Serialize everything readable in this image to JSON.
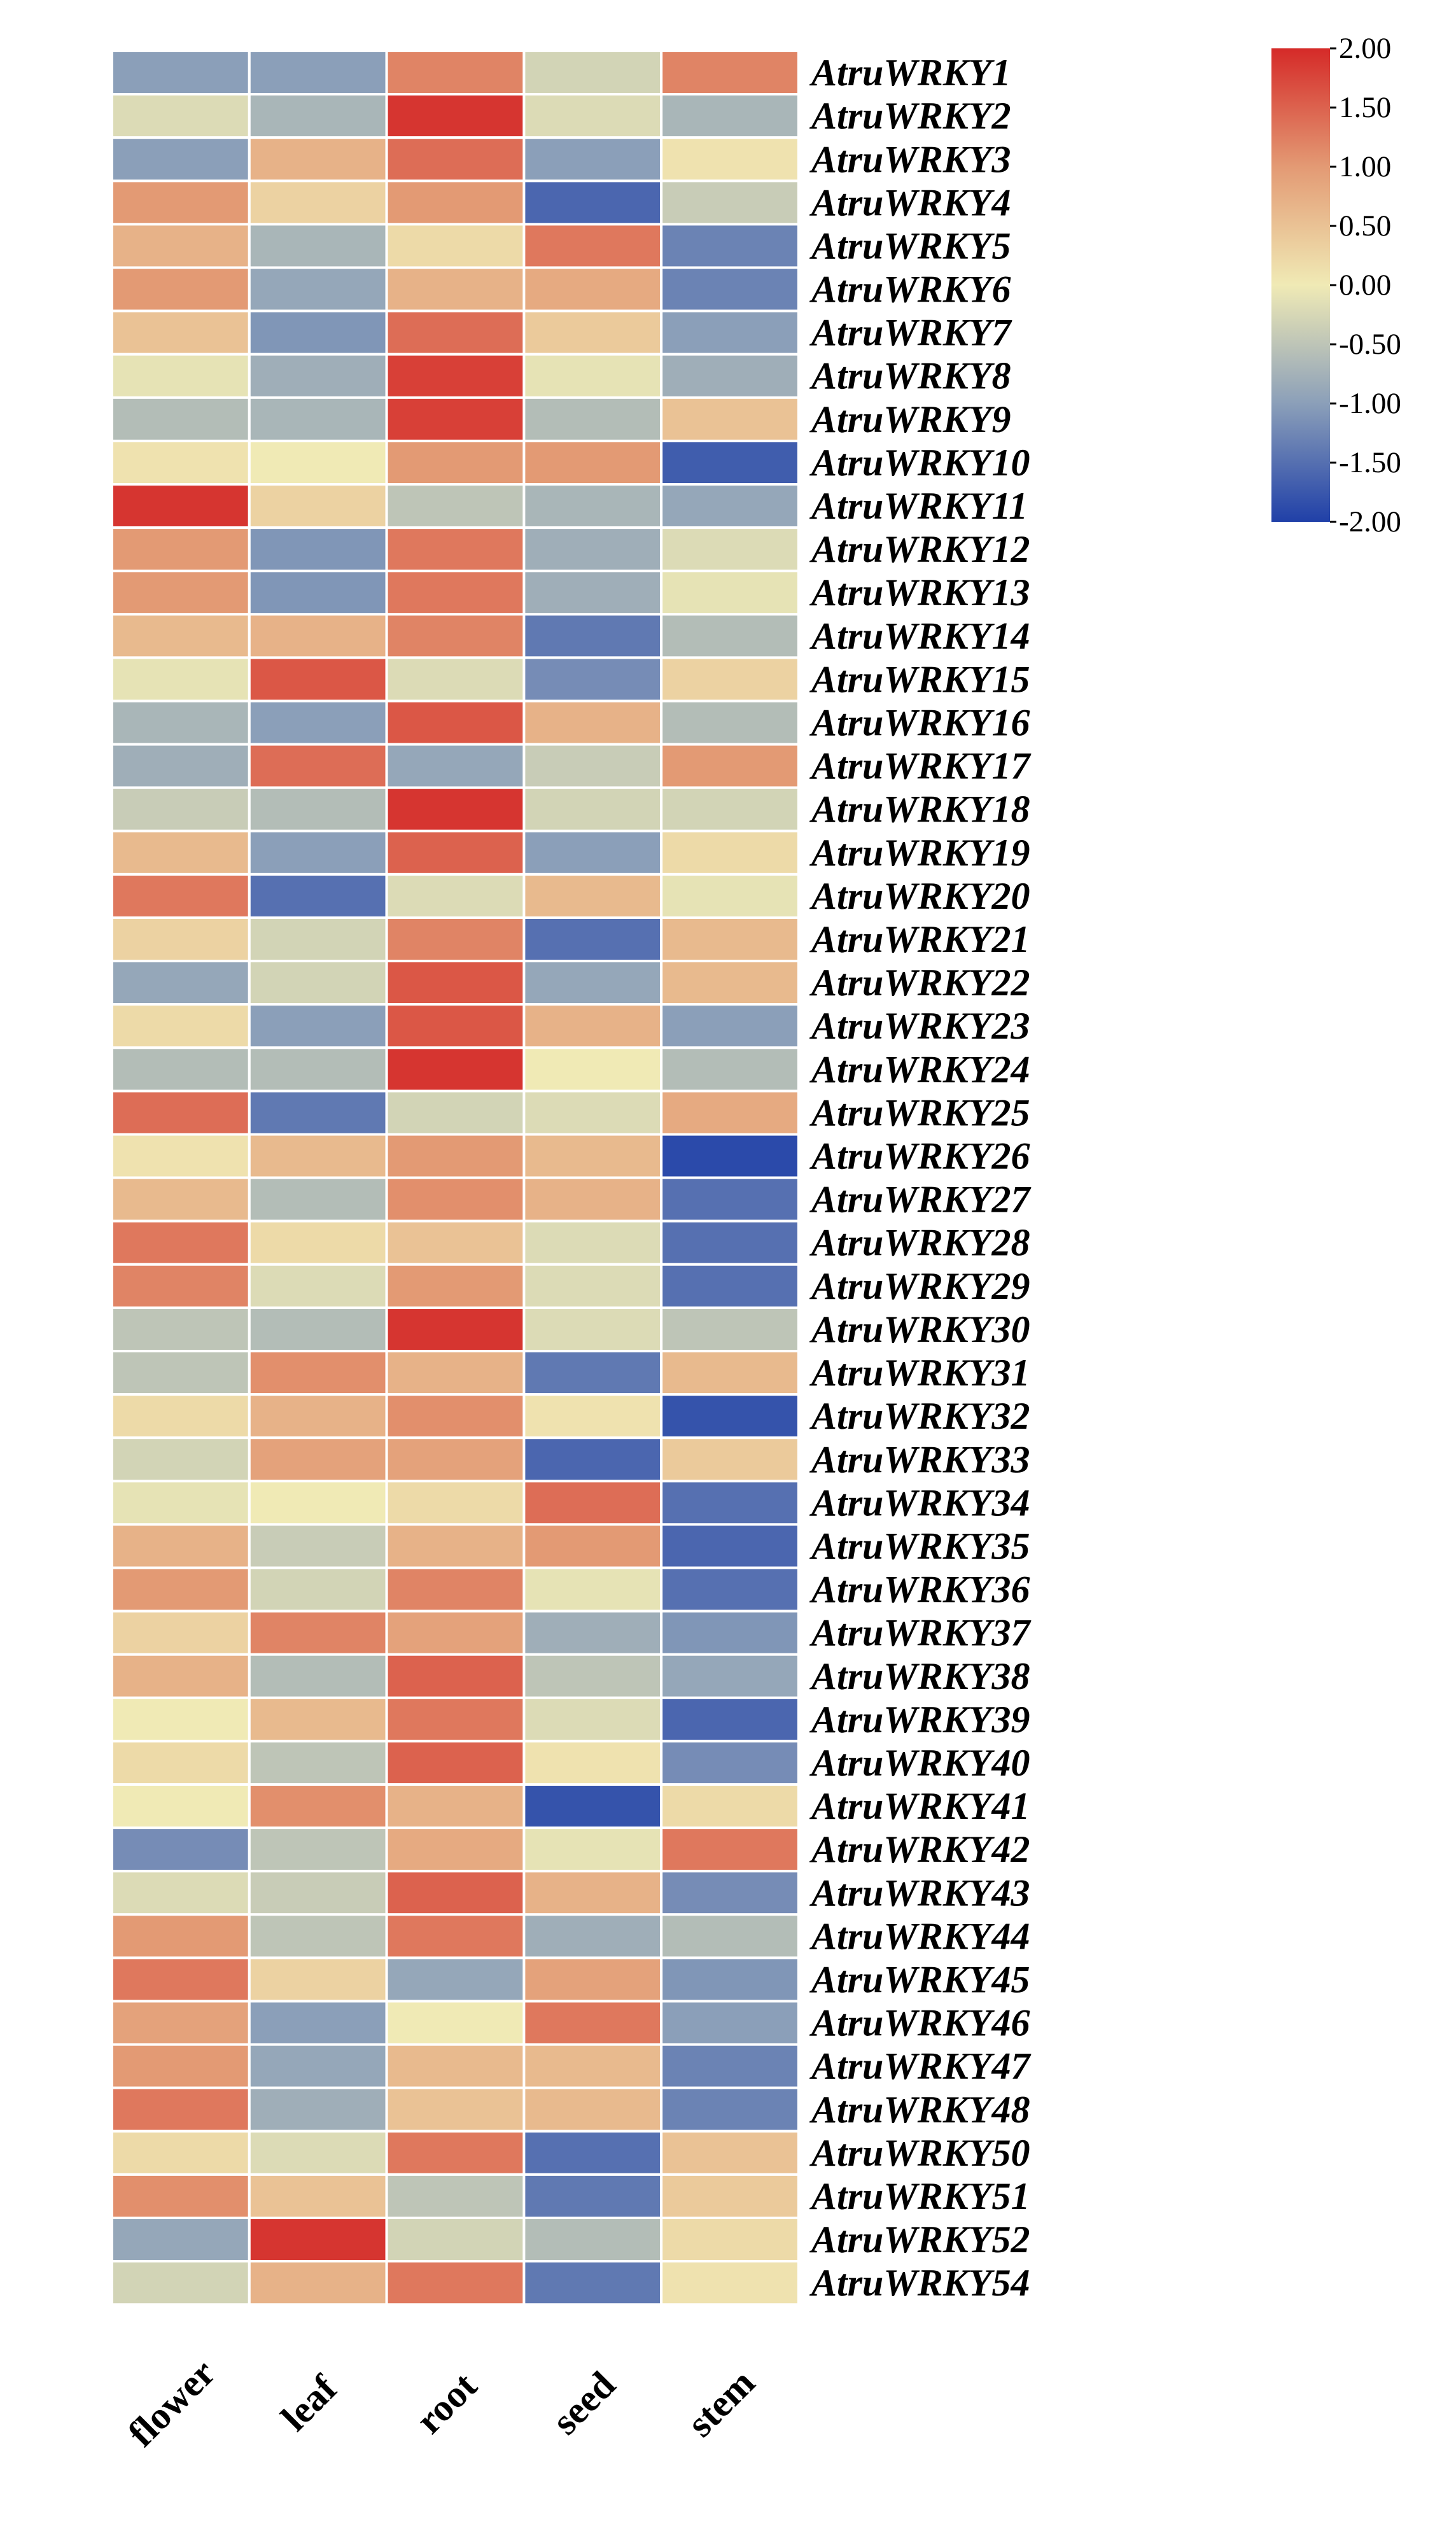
{
  "chart_data": {
    "type": "heatmap",
    "title": "",
    "xlabel": "",
    "ylabel": "",
    "columns": [
      "flower",
      "leaf",
      "root",
      "seed",
      "stem"
    ],
    "rows": [
      "AtruWRKY1",
      "AtruWRKY2",
      "AtruWRKY3",
      "AtruWRKY4",
      "AtruWRKY5",
      "AtruWRKY6",
      "AtruWRKY7",
      "AtruWRKY8",
      "AtruWRKY9",
      "AtruWRKY10",
      "AtruWRKY11",
      "AtruWRKY12",
      "AtruWRKY13",
      "AtruWRKY14",
      "AtruWRKY15",
      "AtruWRKY16",
      "AtruWRKY17",
      "AtruWRKY18",
      "AtruWRKY19",
      "AtruWRKY20",
      "AtruWRKY21",
      "AtruWRKY22",
      "AtruWRKY23",
      "AtruWRKY24",
      "AtruWRKY25",
      "AtruWRKY26",
      "AtruWRKY27",
      "AtruWRKY28",
      "AtruWRKY29",
      "AtruWRKY30",
      "AtruWRKY31",
      "AtruWRKY32",
      "AtruWRKY33",
      "AtruWRKY34",
      "AtruWRKY35",
      "AtruWRKY36",
      "AtruWRKY37",
      "AtruWRKY38",
      "AtruWRKY39",
      "AtruWRKY40",
      "AtruWRKY41",
      "AtruWRKY42",
      "AtruWRKY43",
      "AtruWRKY44",
      "AtruWRKY45",
      "AtruWRKY46",
      "AtruWRKY47",
      "AtruWRKY48",
      "AtruWRKY50",
      "AtruWRKY51",
      "AtruWRKY52",
      "AtruWRKY54"
    ],
    "values": [
      [
        -1.0,
        -1.0,
        1.2,
        -0.3,
        1.2
      ],
      [
        -0.2,
        -0.7,
        1.9,
        -0.2,
        -0.7
      ],
      [
        -1.0,
        0.7,
        1.4,
        -1.0,
        0.1
      ],
      [
        1.0,
        0.3,
        1.0,
        -1.6,
        -0.4
      ],
      [
        0.7,
        -0.7,
        0.2,
        1.3,
        -1.3
      ],
      [
        1.0,
        -0.9,
        0.7,
        0.8,
        -1.3
      ],
      [
        0.5,
        -1.1,
        1.4,
        0.4,
        -1.0
      ],
      [
        -0.1,
        -0.8,
        1.8,
        -0.1,
        -0.8
      ],
      [
        -0.6,
        -0.7,
        1.8,
        -0.6,
        0.5
      ],
      [
        0.1,
        0.0,
        1.0,
        1.0,
        -1.7
      ],
      [
        1.9,
        0.3,
        -0.5,
        -0.7,
        -0.9
      ],
      [
        1.0,
        -1.1,
        1.3,
        -0.8,
        -0.2
      ],
      [
        1.0,
        -1.1,
        1.3,
        -0.8,
        -0.1
      ],
      [
        0.6,
        0.7,
        1.2,
        -1.4,
        -0.6
      ],
      [
        -0.1,
        1.6,
        -0.2,
        -1.2,
        0.3
      ],
      [
        -0.7,
        -1.0,
        1.6,
        0.7,
        -0.6
      ],
      [
        -0.8,
        1.4,
        -0.9,
        -0.4,
        1.0
      ],
      [
        -0.4,
        -0.6,
        1.9,
        -0.3,
        -0.3
      ],
      [
        0.6,
        -1.0,
        1.5,
        -1.0,
        0.2
      ],
      [
        1.3,
        -1.5,
        -0.2,
        0.6,
        -0.1
      ],
      [
        0.3,
        -0.3,
        1.2,
        -1.5,
        0.6
      ],
      [
        -0.9,
        -0.3,
        1.6,
        -0.9,
        0.6
      ],
      [
        0.2,
        -1.0,
        1.6,
        0.7,
        -1.0
      ],
      [
        -0.6,
        -0.6,
        1.9,
        0.0,
        -0.6
      ],
      [
        1.4,
        -1.4,
        -0.3,
        -0.2,
        0.8
      ],
      [
        0.1,
        0.6,
        1.0,
        0.6,
        -1.9
      ],
      [
        0.6,
        -0.6,
        1.1,
        0.7,
        -1.5
      ],
      [
        1.3,
        0.2,
        0.5,
        -0.2,
        -1.5
      ],
      [
        1.2,
        -0.2,
        1.0,
        -0.2,
        -1.5
      ],
      [
        -0.5,
        -0.6,
        1.9,
        -0.2,
        -0.5
      ],
      [
        -0.5,
        1.1,
        0.7,
        -1.4,
        0.6
      ],
      [
        0.2,
        0.7,
        1.1,
        0.1,
        -1.8
      ],
      [
        -0.3,
        0.9,
        0.9,
        -1.6,
        0.4
      ],
      [
        -0.1,
        0.0,
        0.2,
        1.4,
        -1.5
      ],
      [
        0.7,
        -0.4,
        0.7,
        1.0,
        -1.6
      ],
      [
        1.0,
        -0.3,
        1.2,
        -0.1,
        -1.5
      ],
      [
        0.3,
        1.2,
        0.9,
        -0.8,
        -1.1
      ],
      [
        0.7,
        -0.6,
        1.5,
        -0.5,
        -0.9
      ],
      [
        0.0,
        0.6,
        1.3,
        -0.2,
        -1.6
      ],
      [
        0.2,
        -0.5,
        1.5,
        0.1,
        -1.2
      ],
      [
        0.0,
        1.1,
        0.7,
        -1.8,
        0.2
      ],
      [
        -1.2,
        -0.5,
        0.8,
        -0.1,
        1.3
      ],
      [
        -0.2,
        -0.4,
        1.5,
        0.7,
        -1.2
      ],
      [
        1.0,
        -0.5,
        1.3,
        -0.8,
        -0.6
      ],
      [
        1.3,
        0.3,
        -0.9,
        0.9,
        -1.1
      ],
      [
        0.9,
        -1.0,
        0.0,
        1.3,
        -1.0
      ],
      [
        1.0,
        -0.9,
        0.6,
        0.6,
        -1.3
      ],
      [
        1.3,
        -0.8,
        0.5,
        0.6,
        -1.3
      ],
      [
        0.2,
        -0.2,
        1.3,
        -1.5,
        0.5
      ],
      [
        1.1,
        0.5,
        -0.5,
        -1.4,
        0.4
      ],
      [
        -0.9,
        1.9,
        -0.3,
        -0.6,
        0.2
      ],
      [
        -0.3,
        0.7,
        1.3,
        -1.4,
        0.1
      ]
    ],
    "colorbar": {
      "min": -2.0,
      "max": 2.0,
      "ticks": [
        "2.00",
        "1.50",
        "1.00",
        "0.50",
        "0.00",
        "-0.50",
        "-1.00",
        "-1.50",
        "-2.00"
      ],
      "colors": [
        "#2040a8",
        "#8b9fb9",
        "#f0eab5",
        "#e39a74",
        "#d52a28"
      ]
    },
    "grid": false,
    "legend": "top-right"
  }
}
